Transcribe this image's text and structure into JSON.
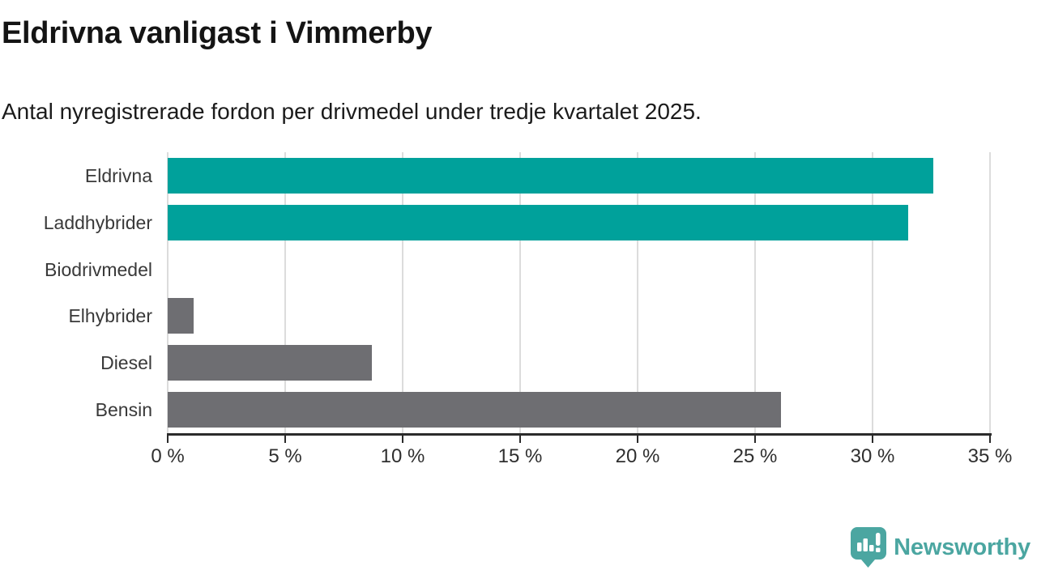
{
  "title": "Eldrivna vanligast i Vimmerby",
  "subtitle": "Antal nyregistrerade fordon per drivmedel under tredje kvartalet 2025.",
  "chart_data": {
    "type": "bar",
    "orientation": "horizontal",
    "title": "Eldrivna vanligast i Vimmerby",
    "subtitle": "Antal nyregistrerade fordon per drivmedel under tredje kvartalet 2025.",
    "categories": [
      "Eldrivna",
      "Laddhybrider",
      "Biodrivmedel",
      "Elhybrider",
      "Diesel",
      "Bensin"
    ],
    "values": [
      32.6,
      31.5,
      0,
      1.1,
      8.7,
      26.1
    ],
    "value_unit": "%",
    "xlim": [
      0,
      35
    ],
    "xticks": [
      0,
      5,
      10,
      15,
      20,
      25,
      30,
      35
    ],
    "xtick_labels": [
      "0 %",
      "5 %",
      "10 %",
      "15 %",
      "20 %",
      "25 %",
      "30 %",
      "35 %"
    ],
    "grid": true,
    "legend": false,
    "colors": {
      "highlight": "#00a19b",
      "default": "#6e6e72"
    },
    "bar_color_keys": [
      "highlight",
      "highlight",
      "default",
      "default",
      "default",
      "default"
    ]
  },
  "branding": {
    "logo_text": "Newsworthy",
    "logo_color": "#4ba6a1",
    "logo_icon": "newsworthy-speech-bubble-chart-icon"
  }
}
